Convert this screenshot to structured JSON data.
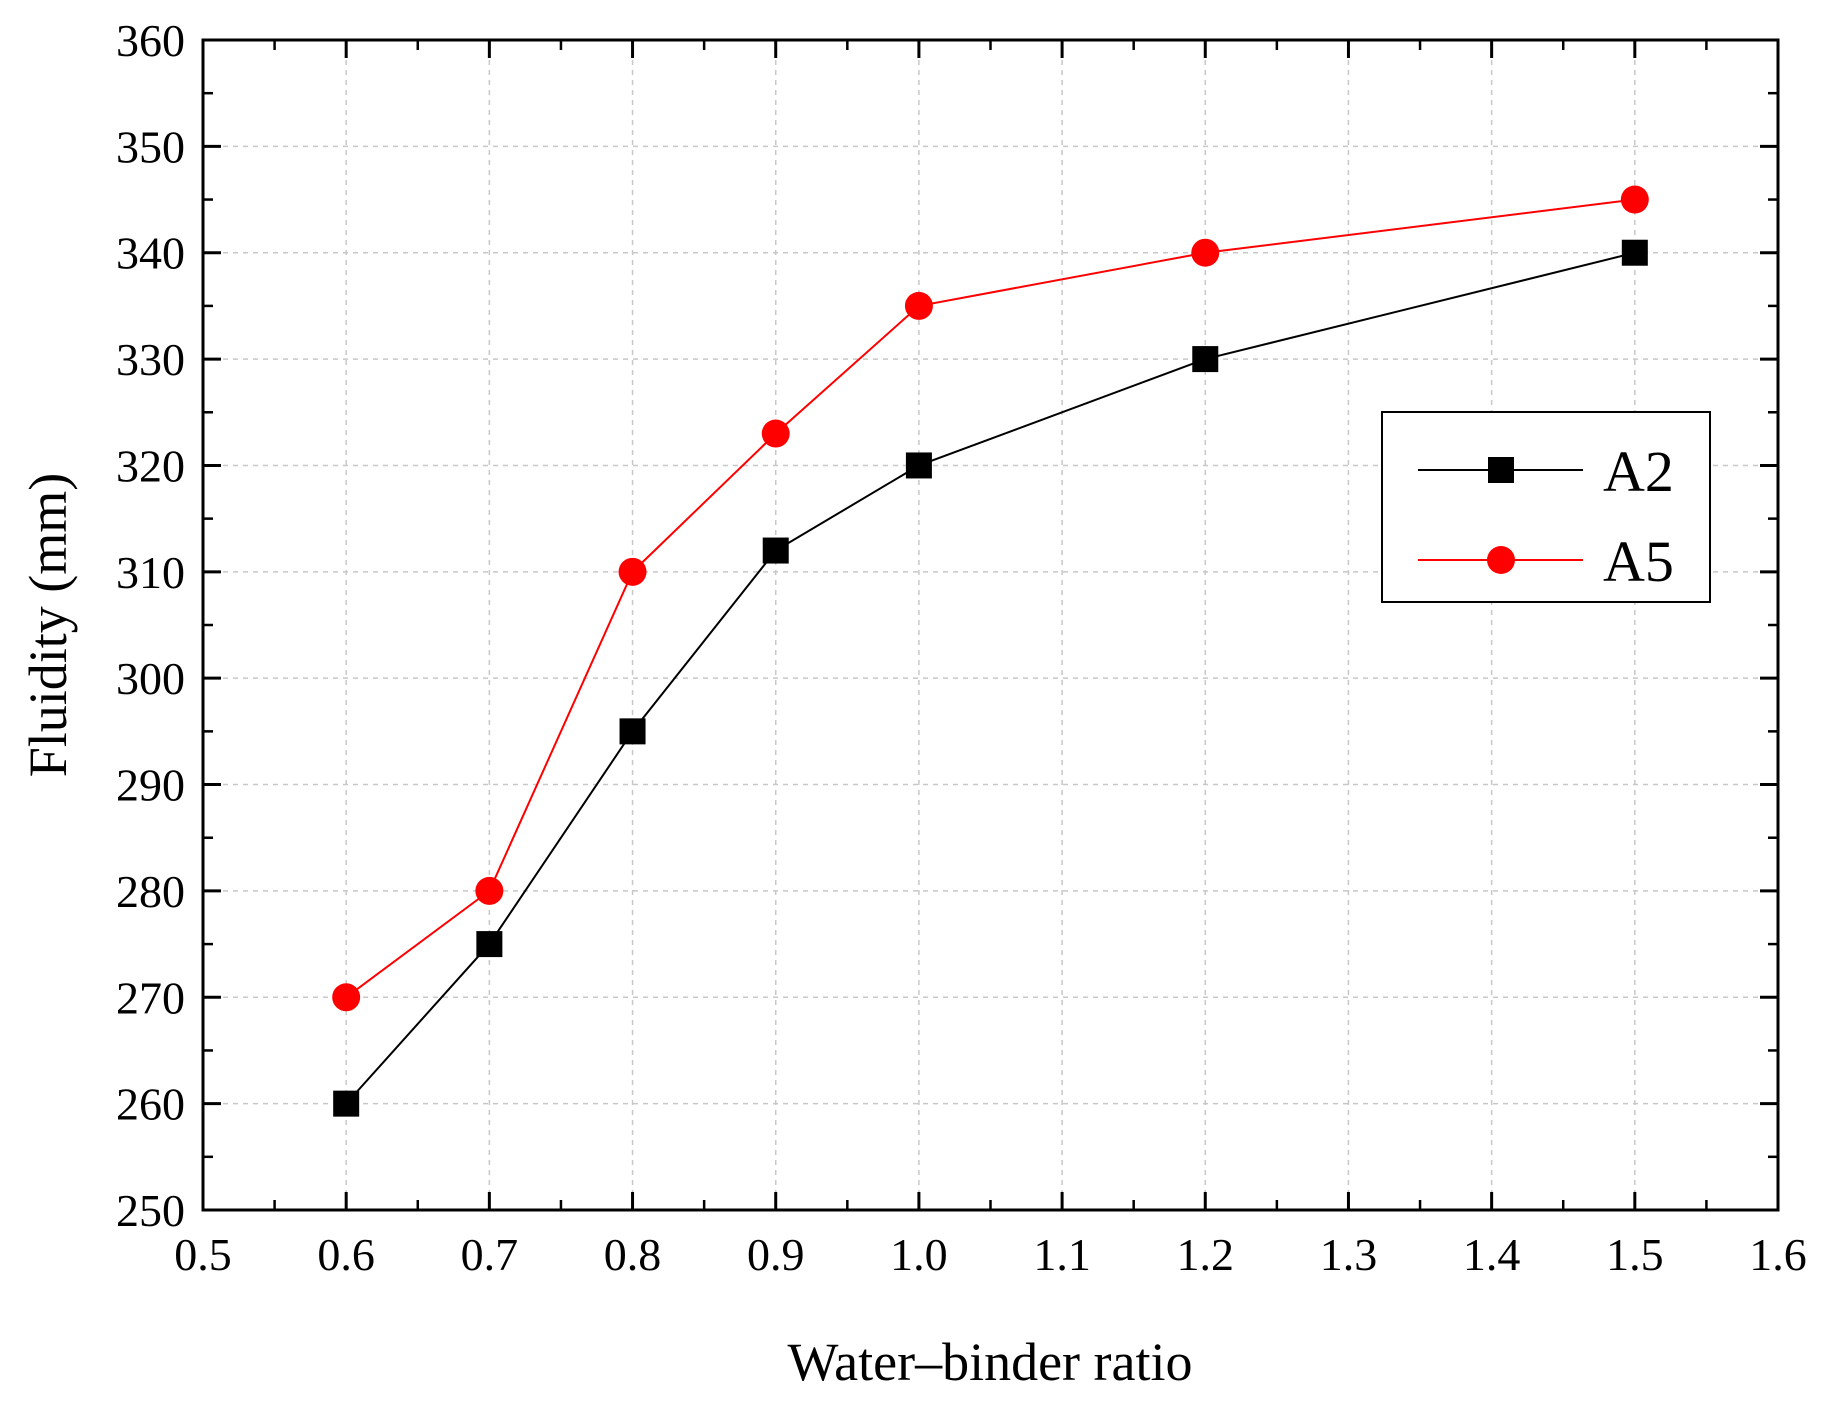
{
  "chart_data": {
    "type": "line",
    "title": "",
    "xlabel": "Water–binder  ratio",
    "ylabel": "Fluidity (mm)",
    "xlim": [
      0.5,
      1.6
    ],
    "ylim": [
      250,
      360
    ],
    "x_ticks": [
      "0.5",
      "0.6",
      "0.7",
      "0.8",
      "0.9",
      "1.0",
      "1.1",
      "1.2",
      "1.3",
      "1.4",
      "1.5",
      "1.6"
    ],
    "y_ticks": [
      "250",
      "260",
      "270",
      "280",
      "290",
      "300",
      "310",
      "320",
      "330",
      "340",
      "350",
      "360"
    ],
    "grid": true,
    "legend_position": "right",
    "series": [
      {
        "name": "A2",
        "marker": "square",
        "color": "#000000",
        "x": [
          0.6,
          0.7,
          0.8,
          0.9,
          1.0,
          1.2,
          1.5
        ],
        "y": [
          260,
          275,
          295,
          312,
          320,
          330,
          340
        ]
      },
      {
        "name": "A5",
        "marker": "circle",
        "color": "#ff0000",
        "x": [
          0.6,
          0.7,
          0.8,
          0.9,
          1.0,
          1.2,
          1.5
        ],
        "y": [
          270,
          280,
          310,
          323,
          335,
          340,
          345
        ]
      }
    ]
  }
}
